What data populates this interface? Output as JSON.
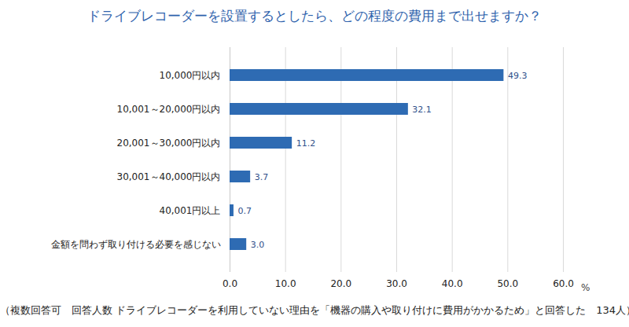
{
  "chart_data": {
    "type": "bar",
    "orientation": "horizontal",
    "title": "ドライブレコーダーを設置するとしたら、どの程度の費用まで出せますか？",
    "caption": "（複数回答可　回答人数 ドライブレコーダーを利用していない理由を「機器の購入や取り付けに費用がかかるため」と回答した　134人）",
    "x_label": "%",
    "categories": [
      "10,000円以内",
      "10,001～20,000円以内",
      "20,001～30,000円以内",
      "30,001～40,000円以内",
      "40,001円以上",
      "金額を問わず取り付ける必要を感じない"
    ],
    "values": [
      49.3,
      32.1,
      11.2,
      3.7,
      0.7,
      3.0
    ],
    "value_labels": [
      "49.3",
      "32.1",
      "11.2",
      "3.7",
      "0.7",
      "3.0"
    ],
    "data_labels": true,
    "color": "#2e6bb3",
    "xlim": [
      0,
      60
    ],
    "xticks": [
      {
        "value": 0,
        "label": "0.0"
      },
      {
        "value": 10,
        "label": "10.0"
      },
      {
        "value": 20,
        "label": "20.0"
      },
      {
        "value": 30,
        "label": "30.0"
      },
      {
        "value": 40,
        "label": "40.0"
      },
      {
        "value": 50,
        "label": "50.0"
      },
      {
        "value": 60,
        "label": "60.0"
      }
    ],
    "grid": true
  }
}
